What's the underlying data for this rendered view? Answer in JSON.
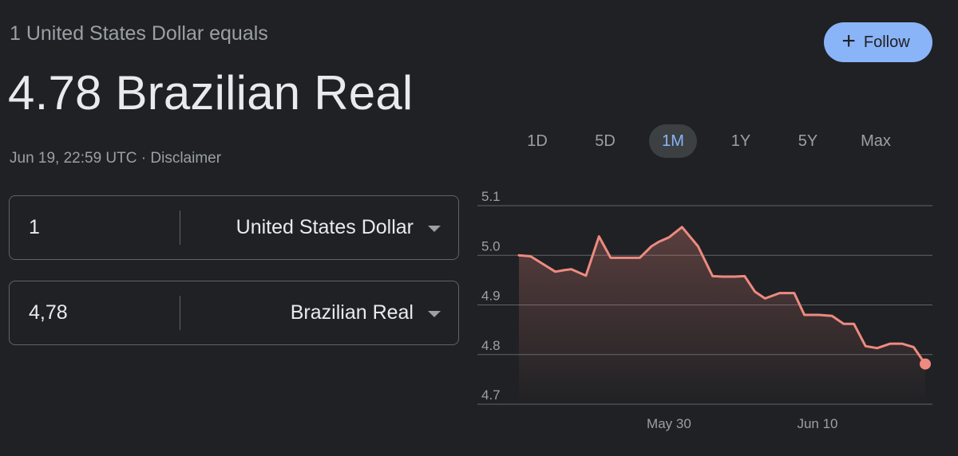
{
  "header": {
    "subtitle": "1 United States Dollar equals",
    "headline": "4.78 Brazilian Real",
    "timestamp": "Jun 19, 22:59 UTC",
    "separator": "·",
    "disclaimer": "Disclaimer",
    "follow_label": "Follow",
    "follow_icon": "plus-icon"
  },
  "converter": {
    "from": {
      "amount": "1",
      "currency": "United States Dollar"
    },
    "to": {
      "amount": "4,78",
      "currency": "Brazilian Real"
    }
  },
  "range_tabs": [
    {
      "label": "1D",
      "active": false
    },
    {
      "label": "5D",
      "active": false
    },
    {
      "label": "1M",
      "active": true
    },
    {
      "label": "1Y",
      "active": false
    },
    {
      "label": "5Y",
      "active": false
    },
    {
      "label": "Max",
      "active": false
    }
  ],
  "colors": {
    "background": "#202124",
    "accent": "#8ab4f8",
    "line": "#ee8a80",
    "grid": "#5f6368",
    "muted_text": "#9aa0a6"
  },
  "chart_data": {
    "type": "area",
    "title": "",
    "xlabel": "",
    "ylabel": "",
    "ylim": [
      4.7,
      5.1
    ],
    "yticks": [
      "5.1",
      "5.0",
      "4.9",
      "4.8",
      "4.7"
    ],
    "xticks": [
      {
        "label": "May 30",
        "x": 10.3
      },
      {
        "label": "Jun 10",
        "x": 20.5
      }
    ],
    "grid": true,
    "x": [
      0,
      0.8,
      2.5,
      3.1,
      3.6,
      4.6,
      5.5,
      6.3,
      6.9,
      7.9,
      8.3,
      9.1,
      9.6,
      10.3,
      11.2,
      12.3,
      13.3,
      14.0,
      14.8,
      15.5,
      16.2,
      16.9,
      17.9,
      18.9,
      19.6,
      20.0,
      20.6,
      21.5,
      22.3,
      23.0,
      23.8,
      24.6,
      25.5,
      26.3,
      27.1,
      27.9
    ],
    "y": [
      5.0,
      4.998,
      4.967,
      4.97,
      4.972,
      4.959,
      5.038,
      4.995,
      4.995,
      4.995,
      4.995,
      5.018,
      5.027,
      5.036,
      5.057,
      5.018,
      4.958,
      4.957,
      4.957,
      4.958,
      4.927,
      4.913,
      4.924,
      4.924,
      4.88,
      4.88,
      4.88,
      4.878,
      4.862,
      4.862,
      4.817,
      4.813,
      4.822,
      4.822,
      4.815,
      4.781
    ],
    "last_value": 4.781
  }
}
